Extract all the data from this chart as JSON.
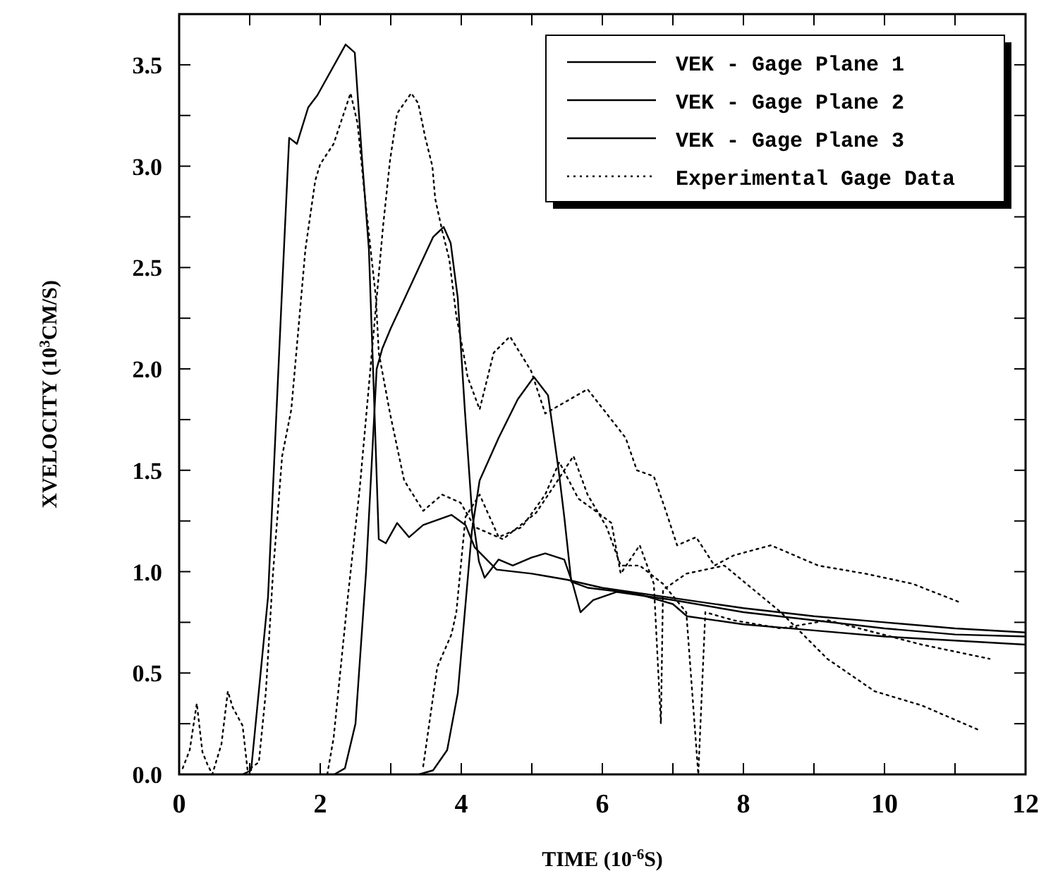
{
  "chart_data": {
    "type": "line",
    "xlabel": "TIME (10$^{-6}$S)",
    "ylabel": "XVELOCITY (10$^{3}$CM/S)",
    "xlim": [
      0,
      12
    ],
    "ylim": [
      0,
      3.75
    ],
    "xticks": [
      0,
      {
        "value": 1,
        "label": null
      },
      2,
      {
        "value": 3,
        "label": null
      },
      4,
      {
        "value": 5,
        "label": null
      },
      6,
      {
        "value": 7,
        "label": null
      },
      8,
      {
        "value": 9,
        "label": null
      },
      10,
      {
        "value": 11,
        "label": null
      },
      12
    ],
    "yticks": [
      {
        "value": 0,
        "label": "0.0"
      },
      {
        "value": 0.25,
        "label": null
      },
      {
        "value": 0.5,
        "label": "0.5"
      },
      {
        "value": 0.75,
        "label": null
      },
      {
        "value": 1,
        "label": "1.0"
      },
      {
        "value": 1.25,
        "label": null
      },
      {
        "value": 1.5,
        "label": "1.5"
      },
      {
        "value": 1.75,
        "label": null
      },
      {
        "value": 2,
        "label": "2.0"
      },
      {
        "value": 2.25,
        "label": null
      },
      {
        "value": 2.5,
        "label": "2.5"
      },
      {
        "value": 2.75,
        "label": null
      },
      {
        "value": 3,
        "label": "3.0"
      },
      {
        "value": 3.25,
        "label": null
      },
      {
        "value": 3.5,
        "label": "3.5"
      }
    ],
    "legend": "top right",
    "grid": false,
    "series": [
      {
        "name": "VEK - Gage Plane 1",
        "color": "#000000",
        "line_style": "solid",
        "x": [
          0.9,
          1.02,
          1.26,
          1.46,
          1.56,
          1.67,
          1.83,
          1.96,
          2.36,
          2.49,
          2.59,
          2.69,
          2.76,
          2.83,
          2.93,
          3.09,
          3.26,
          3.46,
          3.86,
          4.06,
          4.19,
          4.5,
          5.0,
          5.5,
          6.0,
          7.0,
          8.0,
          9.0,
          10.0,
          11.0,
          12.0
        ],
        "values": [
          0,
          0.02,
          0.875,
          2.4,
          3.14,
          3.11,
          3.29,
          3.35,
          3.6,
          3.56,
          3.05,
          2.59,
          1.89,
          1.16,
          1.14,
          1.24,
          1.17,
          1.23,
          1.28,
          1.23,
          1.12,
          1.01,
          0.99,
          0.96,
          0.92,
          0.87,
          0.82,
          0.78,
          0.75,
          0.72,
          0.7
        ]
      },
      {
        "name": "VEK - Gage Plane 2",
        "color": "#000000",
        "line_style": "solid",
        "x": [
          2.2,
          2.35,
          2.5,
          2.65,
          2.8,
          2.88,
          3.0,
          3.2,
          3.4,
          3.6,
          3.75,
          3.85,
          3.95,
          4.05,
          4.15,
          4.25,
          4.33,
          4.53,
          4.73,
          5.0,
          5.19,
          5.46,
          5.58,
          5.69,
          5.87,
          6.2,
          7.0,
          8.0,
          9.0,
          10.0,
          11.0,
          12.0
        ],
        "values": [
          0,
          0.03,
          0.25,
          1.0,
          2.0,
          2.1,
          2.2,
          2.35,
          2.5,
          2.65,
          2.7,
          2.62,
          2.35,
          1.8,
          1.3,
          1.05,
          0.97,
          1.06,
          1.03,
          1.07,
          1.09,
          1.06,
          0.94,
          0.8,
          0.86,
          0.9,
          0.86,
          0.8,
          0.76,
          0.72,
          0.69,
          0.68
        ]
      },
      {
        "name": "VEK - Gage Plane 3",
        "color": "#000000",
        "line_style": "solid",
        "x": [
          3.4,
          3.6,
          3.8,
          3.95,
          4.05,
          4.15,
          4.26,
          4.53,
          4.8,
          5.03,
          5.23,
          5.3,
          5.38,
          5.46,
          5.56,
          5.8,
          6.5,
          7.0,
          7.2,
          8.0,
          9.0,
          10.0,
          11.0,
          12.0
        ],
        "values": [
          0,
          0.02,
          0.12,
          0.4,
          0.8,
          1.2,
          1.45,
          1.66,
          1.85,
          1.96,
          1.87,
          1.7,
          1.5,
          1.27,
          0.95,
          0.92,
          0.89,
          0.84,
          0.78,
          0.74,
          0.71,
          0.68,
          0.66,
          0.64
        ]
      },
      {
        "name": "Experimental Gage Data",
        "color": "#000000",
        "line_style": "dotted",
        "x": [
          0.05,
          0.15,
          0.25,
          0.33,
          0.4,
          0.47,
          0.6,
          0.69,
          0.76,
          0.9,
          0.97,
          1.13,
          1.23,
          1.33,
          1.46,
          1.59,
          1.79,
          1.93,
          2.0,
          2.19,
          2.43,
          2.53,
          2.63,
          2.73,
          2.79,
          2.83,
          2.99,
          3.19,
          3.46,
          3.73,
          3.99,
          4.19,
          4.59,
          5.06,
          5.33,
          5.59,
          5.79,
          6.06,
          6.26,
          6.53,
          6.86,
          7.19,
          7.36,
          7.46,
          7.86,
          8.53,
          9.2,
          10.53,
          11.49
        ],
        "values": [
          0.03,
          0.12,
          0.35,
          0.11,
          0.05,
          0,
          0.15,
          0.41,
          0.33,
          0.24,
          0.02,
          0.06,
          0.41,
          0.99,
          1.57,
          1.8,
          2.59,
          2.93,
          3.01,
          3.11,
          3.36,
          3.21,
          2.86,
          2.54,
          2.35,
          2.08,
          1.78,
          1.45,
          1.3,
          1.38,
          1.34,
          1.22,
          1.16,
          1.29,
          1.43,
          1.57,
          1.38,
          1.22,
          1.03,
          1.03,
          0.94,
          0.8,
          0,
          0.8,
          0.76,
          0.72,
          0.76,
          0.64,
          0.57
        ]
      },
      {
        "color": "#000000",
        "line_style": "dotted",
        "x": [
          2.1,
          2.19,
          2.39,
          2.56,
          2.66,
          2.89,
          2.99,
          3.09,
          3.29,
          3.39,
          3.49,
          3.59,
          3.63,
          3.73,
          3.83,
          3.93,
          4.03,
          4.09,
          4.26,
          4.46,
          4.69,
          4.99,
          5.19,
          5.39,
          5.79,
          6.06,
          6.33,
          6.49,
          6.73,
          6.89,
          7.06,
          7.33,
          7.59,
          7.86,
          8.39,
          9.06,
          9.73,
          10.4,
          11.06
        ],
        "values": [
          0,
          0.18,
          0.87,
          1.41,
          1.8,
          2.7,
          3.03,
          3.26,
          3.36,
          3.31,
          3.14,
          3.0,
          2.84,
          2.68,
          2.54,
          2.26,
          2.08,
          1.96,
          1.8,
          2.08,
          2.16,
          1.99,
          1.78,
          1.82,
          1.9,
          1.78,
          1.66,
          1.5,
          1.47,
          1.31,
          1.13,
          1.17,
          1.03,
          1.08,
          1.13,
          1.03,
          0.99,
          0.94,
          0.85
        ]
      },
      {
        "color": "#000000",
        "line_style": "dotted",
        "x": [
          3.46,
          3.66,
          3.86,
          3.93,
          4.06,
          4.26,
          4.53,
          4.86,
          5.19,
          5.39,
          5.66,
          5.86,
          6.13,
          6.26,
          6.53,
          6.73,
          6.83,
          6.86,
          7.19,
          7.73,
          8.53,
          9.19,
          9.86,
          10.53,
          11.33
        ],
        "values": [
          0.04,
          0.53,
          0.69,
          0.8,
          1.27,
          1.38,
          1.17,
          1.22,
          1.38,
          1.54,
          1.36,
          1.31,
          1.24,
          0.99,
          1.13,
          0.94,
          0.25,
          0.91,
          0.99,
          1.03,
          0.8,
          0.57,
          0.41,
          0.34,
          0.22
        ]
      }
    ]
  }
}
